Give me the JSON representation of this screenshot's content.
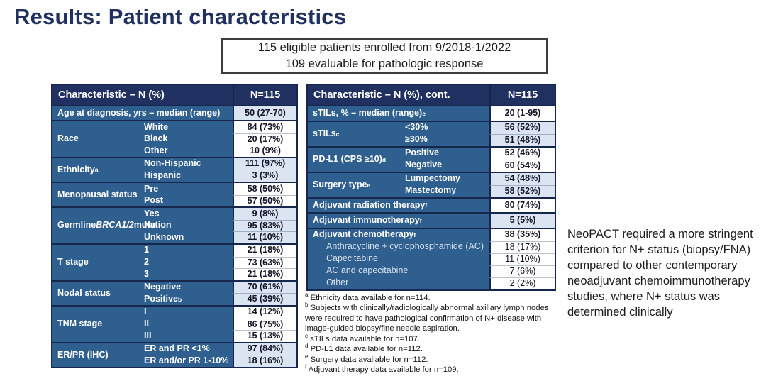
{
  "slide": {
    "title": "Results: Patient characteristics"
  },
  "enrollment_box": {
    "line1": "115 eligible patients enrolled from 9/2018-1/2022",
    "line2": "109 evaluable for pathologic response"
  },
  "colors": {
    "title": "#1f3061",
    "table_header_bg": "#1f3061",
    "table_body_bg": "#2e5f8e",
    "value_light_bg": "#dbe5f1",
    "value_white_bg": "#ffffff"
  },
  "tables": [
    {
      "id": "patient-characteristics-table-left",
      "header": [
        "Characteristic – N (%)",
        "N=115"
      ],
      "groups": [
        {
          "shade": "lb",
          "rows": [
            {
              "text": "Age at diagnosis, yrs – median (range)",
              "value": "50 (27-70)"
            }
          ]
        },
        {
          "shade": "w",
          "label": "Race",
          "rows": [
            {
              "text": "White",
              "value": "84 (73%)"
            },
            {
              "text": "Black",
              "value": "20 (17%)"
            },
            {
              "text": "Other",
              "value": "10 (9%)"
            }
          ]
        },
        {
          "shade": "lb",
          "label": "Ethnicity^a",
          "rows": [
            {
              "text": "Non-Hispanic",
              "value": "111 (97%)"
            },
            {
              "text": "Hispanic",
              "value": "3 (3%)"
            }
          ]
        },
        {
          "shade": "w",
          "label": "Menopausal status",
          "rows": [
            {
              "text": "Pre",
              "value": "58 (50%)"
            },
            {
              "text": "Post",
              "value": "57 (50%)"
            }
          ]
        },
        {
          "shade": "lb",
          "label": "Germline *BRCA1/2* mutation",
          "rows": [
            {
              "text": "Yes",
              "value": "9 (8%)"
            },
            {
              "text": "No",
              "value": "95 (83%)"
            },
            {
              "text": "Unknown",
              "value": "11 (10%)"
            }
          ]
        },
        {
          "shade": "w",
          "label": "T stage",
          "rows": [
            {
              "text": "1",
              "value": "21 (18%)"
            },
            {
              "text": "2",
              "value": "73 (63%)"
            },
            {
              "text": "3",
              "value": "21 (18%)"
            }
          ]
        },
        {
          "shade": "lb",
          "label": "Nodal status",
          "rows": [
            {
              "text": "Negative",
              "value": "70 (61%)"
            },
            {
              "text": "Positive^b",
              "value": "45 (39%)"
            }
          ]
        },
        {
          "shade": "w",
          "label": "TNM stage",
          "rows": [
            {
              "text": "I",
              "value": "14 (12%)"
            },
            {
              "text": "II",
              "value": "86 (75%)"
            },
            {
              "text": "III",
              "value": "15 (13%)"
            }
          ]
        },
        {
          "shade": "lb",
          "label": "ER/PR (IHC)",
          "rows": [
            {
              "text": "ER and PR <1%",
              "value": "97 (84%)"
            },
            {
              "text": "ER and/or PR 1-10%",
              "value": "18 (16%)"
            }
          ]
        }
      ]
    },
    {
      "id": "patient-characteristics-table-right",
      "header": [
        "Characteristic – N (%), cont.",
        "N=115"
      ],
      "groups": [
        {
          "shade": "w",
          "rows": [
            {
              "text": "sTILs, % – median (range)^c",
              "value": "20 (1-95)"
            }
          ]
        },
        {
          "shade": "lb",
          "label": "sTILs^c",
          "rows": [
            {
              "text": "<30%",
              "value": "56 (52%)"
            },
            {
              "text": "≥30%",
              "value": "51 (48%)"
            }
          ]
        },
        {
          "shade": "w",
          "label": "PD-L1 (CPS ≥10)^d",
          "rows": [
            {
              "text": "Positive",
              "value": "52 (46%)"
            },
            {
              "text": "Negative",
              "value": "60 (54%)"
            }
          ]
        },
        {
          "shade": "lb",
          "label": "Surgery type^e",
          "rows": [
            {
              "text": "Lumpectomy",
              "value": "54 (48%)"
            },
            {
              "text": "Mastectomy",
              "value": "58 (52%)"
            }
          ]
        },
        {
          "shade": "w",
          "rows": [
            {
              "text": "Adjuvant radiation therapy^f",
              "value": "80 (74%)"
            }
          ]
        },
        {
          "shade": "lb",
          "rows": [
            {
              "text": "Adjuvant immunotherapy^f",
              "value": "5 (5%)"
            }
          ]
        },
        {
          "shade": "w",
          "rows": [
            {
              "text": "Adjuvant chemotherapy^f",
              "value": "38 (35%)"
            },
            {
              "text": "Anthracycline + cyclophosphamide (AC)",
              "value": "18 (17%)",
              "indent": true,
              "muted": true
            },
            {
              "text": "Capecitabine",
              "value": "11 (10%)",
              "indent": true,
              "muted": true
            },
            {
              "text": "AC and capecitabine",
              "value": "7 (6%)",
              "indent": true,
              "muted": true
            },
            {
              "text": "Other",
              "value": "2 (2%)",
              "indent": true,
              "muted": true
            }
          ]
        }
      ]
    }
  ],
  "footnotes": [
    {
      "sup": "a",
      "text": "Ethnicity data available for n=114."
    },
    {
      "sup": "b",
      "text": "Subjects with clinically/radiologically abnormal axillary lymph nodes were required to have pathological confirmation of N+ disease with image-guided biopsy/fine needle aspiration."
    },
    {
      "sup": "c",
      "text": "sTILs data available for n=107."
    },
    {
      "sup": "d",
      "text": "PD-L1 data available for n=112."
    },
    {
      "sup": "e",
      "text": "Surgery data available for n=112."
    },
    {
      "sup": "f",
      "text": "Adjuvant therapy data available for n=109."
    }
  ],
  "side_note": "NeoPACT required a more stringent criterion for N+ status (biopsy/FNA) compared to other contemporary neoadjuvant chemoimmunotherapy studies, where N+ status was determined clinically"
}
